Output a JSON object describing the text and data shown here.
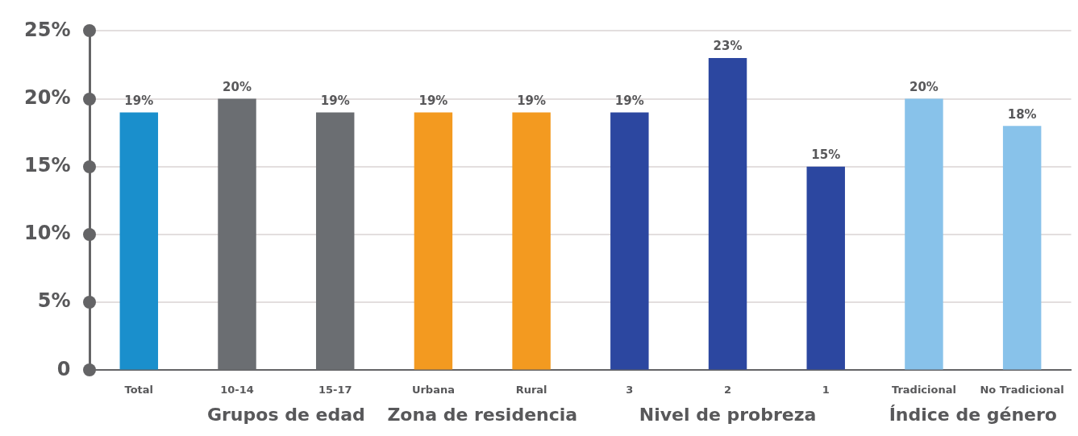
{
  "chart_data": {
    "type": "bar",
    "categories": [
      "Total",
      "10-14",
      "15-17",
      "Urbana",
      "Rural",
      "3",
      "2",
      "1",
      "Tradicional",
      "No Tradicional"
    ],
    "values": [
      19,
      20,
      19,
      19,
      19,
      19,
      23,
      15,
      20,
      18
    ],
    "value_labels": [
      "19%",
      "20%",
      "19%",
      "19%",
      "19%",
      "19%",
      "23%",
      "15%",
      "20%",
      "18%"
    ],
    "colors": [
      "#1a8fcc",
      "#6b6e72",
      "#6b6e72",
      "#f39a20",
      "#f39a20",
      "#2c47a0",
      "#2c47a0",
      "#2c47a0",
      "#88c2ea",
      "#88c2ea"
    ],
    "ylim": [
      0,
      25
    ],
    "yticks": [
      0,
      {
        "value": 5,
        "label": "5%"
      },
      {
        "value": 10,
        "label": "10%"
      },
      {
        "value": 15,
        "label": "15%"
      },
      {
        "value": 20,
        "label": "20%"
      },
      {
        "value": 25,
        "label": "25%"
      }
    ],
    "annotations": [
      "Grupos de edad",
      "Zona de residencia",
      "Nivel de probreza",
      "Índice de género"
    ],
    "grid": "y",
    "legend": false
  }
}
